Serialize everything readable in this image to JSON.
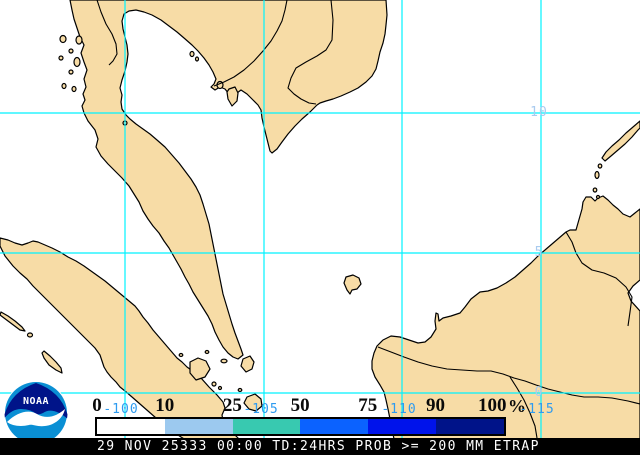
{
  "status_bar": {
    "text": "29 NOV 25333 00:00 TD:24HRS PROB >= 200 MM ETRAP",
    "bg_color": "#000000",
    "text_color": "#FFFFFF"
  },
  "legend": {
    "title": "probability-scale",
    "unit": "%",
    "ticks": [
      "0",
      "10",
      "25",
      "50",
      "75",
      "90",
      "100"
    ],
    "colors": [
      "#FFFFFF",
      "#9CC9EF",
      "#38C9B0",
      "#0B62FF",
      "#0013EB",
      "#001389"
    ]
  },
  "grid": {
    "longitude_labels": [
      "-100",
      "-105",
      "-110",
      "-115"
    ],
    "latitude_labels": [
      "10",
      "5",
      "0"
    ],
    "line_color": "#00F2FF",
    "lon_label_color": "#2E9BF0",
    "lat_label_color": "#A9CBEF"
  },
  "map": {
    "land_color": "#F7DCA6",
    "ocean_color": "#FFFFFF",
    "coast_color": "#000000",
    "region": "Southeast Asia"
  },
  "logo": {
    "text": "NOAA",
    "navy": "#001489",
    "light_blue": "#0A8FD4"
  }
}
